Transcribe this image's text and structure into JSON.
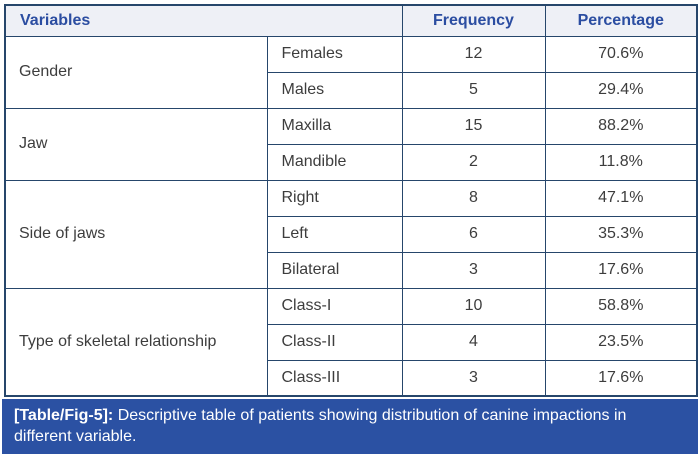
{
  "table": {
    "headers": [
      "Variables",
      "Frequency",
      "Percentage"
    ],
    "groups": [
      {
        "label": "Gender",
        "rows": [
          {
            "variable": "Females",
            "frequency": "12",
            "percentage": "70.6%"
          },
          {
            "variable": "Males",
            "frequency": "5",
            "percentage": "29.4%"
          }
        ]
      },
      {
        "label": "Jaw",
        "rows": [
          {
            "variable": "Maxilla",
            "frequency": "15",
            "percentage": "88.2%"
          },
          {
            "variable": "Mandible",
            "frequency": "2",
            "percentage": "11.8%"
          }
        ]
      },
      {
        "label": "Side of jaws",
        "rows": [
          {
            "variable": "Right",
            "frequency": "8",
            "percentage": "47.1%"
          },
          {
            "variable": "Left",
            "frequency": "6",
            "percentage": "35.3%"
          },
          {
            "variable": "Bilateral",
            "frequency": "3",
            "percentage": "17.6%"
          }
        ]
      },
      {
        "label": "Type of skeletal relationship",
        "rows": [
          {
            "variable": "Class-I",
            "frequency": "10",
            "percentage": "58.8%"
          },
          {
            "variable": "Class-II",
            "frequency": "4",
            "percentage": "23.5%"
          },
          {
            "variable": "Class-III",
            "frequency": "3",
            "percentage": "17.6%"
          }
        ]
      }
    ]
  },
  "caption": {
    "label": "[Table/Fig-5]:",
    "text": "Descriptive table of patients showing distribution of canine impactions in different variable."
  },
  "colors": {
    "border": "#26466b",
    "header_bg": "#eef0f6",
    "header_text": "#2b4da1",
    "body_text": "#3d3d3d",
    "footer_bg": "#2b51a3",
    "footer_text": "#ffffff"
  }
}
